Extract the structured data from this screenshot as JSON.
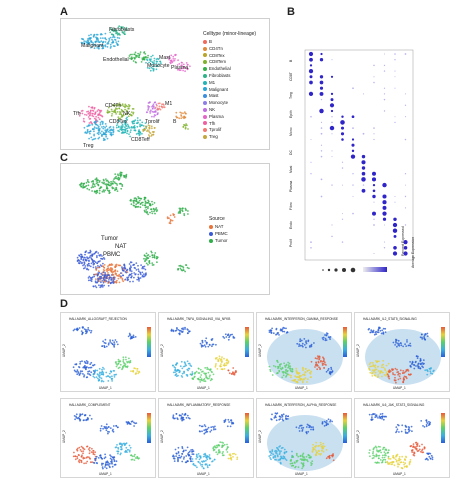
{
  "panels": {
    "a": "A",
    "b": "B",
    "c": "C",
    "d": "D"
  },
  "panel_a": {
    "legend_title": "Celltype (minor-lineage)",
    "legend": [
      {
        "label": "B",
        "color": "#ef6b5b"
      },
      {
        "label": "CD4Tn",
        "color": "#e08a3b"
      },
      {
        "label": "CD8Tex",
        "color": "#b8a52a"
      },
      {
        "label": "CD8Tem",
        "color": "#7fb22d"
      },
      {
        "label": "Endothelial",
        "color": "#34b04a"
      },
      {
        "label": "Fibroblasts",
        "color": "#2db38a"
      },
      {
        "label": "M1",
        "color": "#23b5b5"
      },
      {
        "label": "Malignant",
        "color": "#2aa6d6"
      },
      {
        "label": "Mast",
        "color": "#3b8fe0"
      },
      {
        "label": "Monocyte",
        "color": "#8d7fe5"
      },
      {
        "label": "NK",
        "color": "#c06fe0"
      },
      {
        "label": "Plasma",
        "color": "#e565c9"
      },
      {
        "label": "Tfh",
        "color": "#ef5fa1"
      },
      {
        "label": "Tprolif",
        "color": "#f07b73"
      },
      {
        "label": "Treg",
        "color": "#c4a83a"
      }
    ],
    "cluster_labels": [
      "Fibroblasts",
      "Malignant",
      "Endothelial",
      "Mast",
      "Monocyte",
      "Plasma",
      "M1",
      "CD4Tn",
      "NK",
      "Tfh",
      "CD8Tex",
      "Tprolif",
      "Treg",
      "CD8Teff",
      "B"
    ]
  },
  "panel_b": {
    "groups": [
      "B",
      "CD8T",
      "Treg",
      "Epith",
      "Mono",
      "DC",
      "Mast",
      "Plasma",
      "Fibro",
      "Endo",
      "Prolif"
    ],
    "legend_size": "Percent Expressed",
    "legend_color": "Average Expression"
  },
  "panel_c": {
    "legend_title": "Source",
    "legend": [
      {
        "label": "NAT",
        "color": "#e8743b"
      },
      {
        "label": "PBMC",
        "color": "#3b5bd6"
      },
      {
        "label": "Tumor",
        "color": "#2fae4a"
      }
    ],
    "cluster_labels": [
      "Tumor",
      "NAT",
      "PBMC"
    ]
  },
  "panel_d": {
    "tiles": [
      {
        "title": "HALLMARK_ALLOGRAFT_REJECTION"
      },
      {
        "title": "HALLMARK_TNFA_SIGNALING_VIA_NFKB"
      },
      {
        "title": "HALLMARK_INTERFERON_GAMMA_RESPONSE"
      },
      {
        "title": "HALLMARK_IL2_STAT5_SIGNALING"
      },
      {
        "title": "HALLMARK_COMPLEMENT"
      },
      {
        "title": "HALLMARK_INFLAMMATORY_RESPONSE"
      },
      {
        "title": "HALLMARK_INTERFERON_ALPHA_RESPONSE"
      },
      {
        "title": "HALLMARK_IL6_JAK_STAT3_SIGNALING"
      }
    ],
    "xlabel": "UMAP_1",
    "ylabel": "UMAP_2"
  }
}
